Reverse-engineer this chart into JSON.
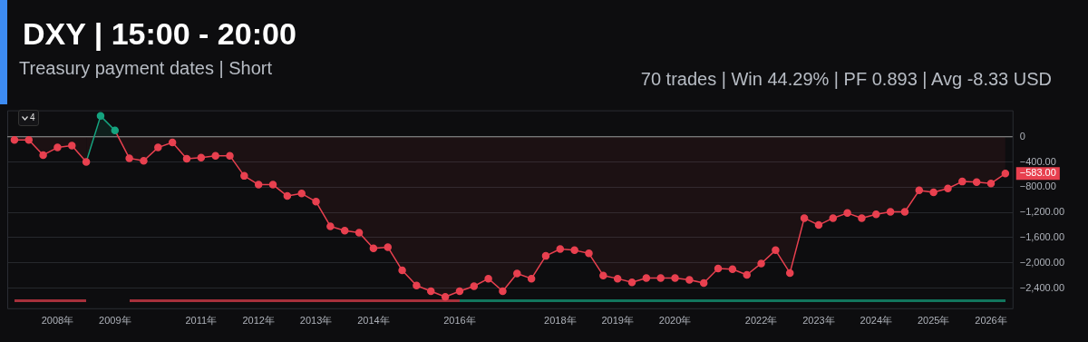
{
  "chart_data": {
    "type": "area",
    "title": "DXY | 15:00 - 20:00",
    "subtitle": "Treasury payment dates | Short",
    "annotations": [
      "70 trades | Win 44.29% | PF 0.893 | Avg -8.33 USD",
      "4"
    ],
    "categories": [
      null,
      null,
      null,
      "2008年",
      null,
      null,
      null,
      "2009年",
      null,
      null,
      null,
      null,
      null,
      "2011年",
      null,
      null,
      null,
      "2012年",
      null,
      null,
      null,
      "2013年",
      null,
      null,
      null,
      "2014年",
      null,
      null,
      null,
      null,
      null,
      "2016年",
      null,
      null,
      null,
      null,
      null,
      null,
      "2018年",
      null,
      null,
      null,
      "2019年",
      null,
      null,
      null,
      "2020年",
      null,
      null,
      null,
      null,
      null,
      "2022年",
      null,
      null,
      null,
      "2023年",
      null,
      null,
      null,
      "2024年",
      null,
      null,
      null,
      "2025年",
      null,
      null,
      null,
      "2026年",
      null
    ],
    "series": [
      {
        "color": "#e8404f",
        "colors": [
          "#e8404f",
          "#e8404f",
          "#e8404f",
          "#e8404f",
          "#e8404f",
          "#e8404f",
          "#15a37f",
          "#15a37f",
          "#e8404f",
          "#e8404f",
          "#e8404f",
          "#e8404f",
          "#e8404f",
          "#e8404f",
          "#e8404f",
          "#e8404f",
          "#e8404f",
          "#e8404f",
          "#e8404f",
          "#e8404f",
          "#e8404f",
          "#e8404f",
          "#e8404f",
          "#e8404f",
          "#e8404f",
          "#e8404f",
          "#e8404f",
          "#e8404f",
          "#e8404f",
          "#e8404f",
          "#e8404f",
          "#e8404f",
          "#e8404f",
          "#e8404f",
          "#e8404f",
          "#e8404f",
          "#e8404f",
          "#e8404f",
          "#e8404f",
          "#e8404f",
          "#e8404f",
          "#e8404f",
          "#e8404f",
          "#e8404f",
          "#e8404f",
          "#e8404f",
          "#e8404f",
          "#e8404f",
          "#e8404f",
          "#e8404f",
          "#e8404f",
          "#e8404f",
          "#e8404f",
          "#e8404f",
          "#e8404f",
          "#e8404f",
          "#e8404f",
          "#e8404f",
          "#e8404f",
          "#e8404f",
          "#e8404f",
          "#e8404f",
          "#e8404f",
          "#e8404f",
          "#e8404f",
          "#e8404f",
          "#e8404f",
          "#e8404f",
          "#e8404f",
          "#e8404f"
        ],
        "values": [
          -50,
          -50,
          -290,
          -170,
          -140,
          -400,
          330,
          100,
          -340,
          -380,
          -170,
          -90,
          -350,
          -330,
          -300,
          -300,
          -620,
          -760,
          -760,
          -940,
          -900,
          -1030,
          -1420,
          -1490,
          -1520,
          -1770,
          -1750,
          -2120,
          -2360,
          -2450,
          -2540,
          -2450,
          -2370,
          -2250,
          -2450,
          -2170,
          -2250,
          -1890,
          -1780,
          -1800,
          -1850,
          -2200,
          -2250,
          -2310,
          -2240,
          -2240,
          -2240,
          -2270,
          -2320,
          -2090,
          -2100,
          -2190,
          -2010,
          -1800,
          -2160,
          -1290,
          -1400,
          -1290,
          -1210,
          -1290,
          -1230,
          -1190,
          -1190,
          -850,
          -880,
          -820,
          -710,
          -720,
          -740,
          -583
        ],
        "value_labels": [
          null,
          null,
          null,
          null,
          null,
          null,
          null,
          null,
          null,
          null,
          null,
          null,
          null,
          null,
          null,
          null,
          null,
          null,
          null,
          null,
          null,
          null,
          null,
          null,
          null,
          null,
          null,
          null,
          null,
          null,
          null,
          null,
          null,
          null,
          null,
          null,
          null,
          null,
          null,
          null,
          null,
          null,
          null,
          null,
          null,
          null,
          null,
          null,
          null,
          null,
          null,
          null,
          null,
          null,
          null,
          null,
          null,
          null,
          null,
          null,
          null,
          null,
          null,
          null,
          null,
          null,
          null,
          null,
          null,
          "−583.00"
        ]
      }
    ],
    "ylim": [
      -2720,
      420
    ],
    "yticks": [
      {
        "value": 0,
        "label": "0"
      },
      {
        "value": -400,
        "label": "−400.00"
      },
      {
        "value": -800,
        "label": "−800.00"
      },
      {
        "value": -1200,
        "label": "−1,200.00"
      },
      {
        "value": -1600,
        "label": "−1,600.00"
      },
      {
        "value": -2000,
        "label": "−2,000.00"
      },
      {
        "value": -2400,
        "label": "−2,400.00"
      }
    ],
    "grid": "y",
    "marker": "circle",
    "ref_lines": [
      {
        "axis": "y",
        "value": 0,
        "color": "#9a9a9a"
      }
    ]
  }
}
